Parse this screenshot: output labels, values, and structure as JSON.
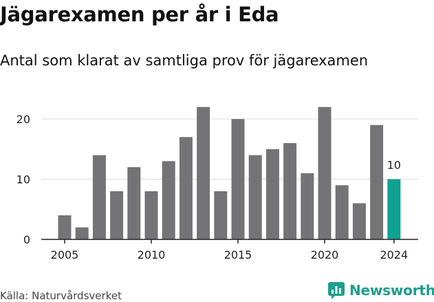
{
  "header": {
    "title": "Jägarexamen per år i Eda",
    "subtitle": "Antal som klarat av samtliga prov för jägarexamen"
  },
  "footer": {
    "source": "Källa: Naturvårdsverket",
    "brand": "Newsworthy"
  },
  "colors": {
    "bar": "#747477",
    "highlight": "#0fa192",
    "grid": "#dcdcdc",
    "axis": "#222222",
    "brand": "#1d9e8e"
  },
  "chart_data": {
    "type": "bar",
    "title": "Jägarexamen per år i Eda",
    "subtitle": "Antal som klarat av samtliga prov för jägarexamen",
    "x": [
      2005,
      2006,
      2007,
      2008,
      2009,
      2010,
      2011,
      2012,
      2013,
      2014,
      2015,
      2016,
      2017,
      2018,
      2019,
      2020,
      2021,
      2022,
      2023,
      2024
    ],
    "values": [
      4,
      2,
      14,
      8,
      12,
      8,
      13,
      17,
      22,
      8,
      20,
      14,
      15,
      16,
      11,
      22,
      9,
      6,
      19,
      10
    ],
    "highlight_index": 19,
    "highlight_label": "10",
    "xticks": [
      "2005",
      "2010",
      "2015",
      "2020",
      "2024"
    ],
    "yticks": [
      "0",
      "10",
      "20"
    ],
    "ylim": [
      0,
      22
    ],
    "grid": true,
    "xlabel": "",
    "ylabel": ""
  }
}
